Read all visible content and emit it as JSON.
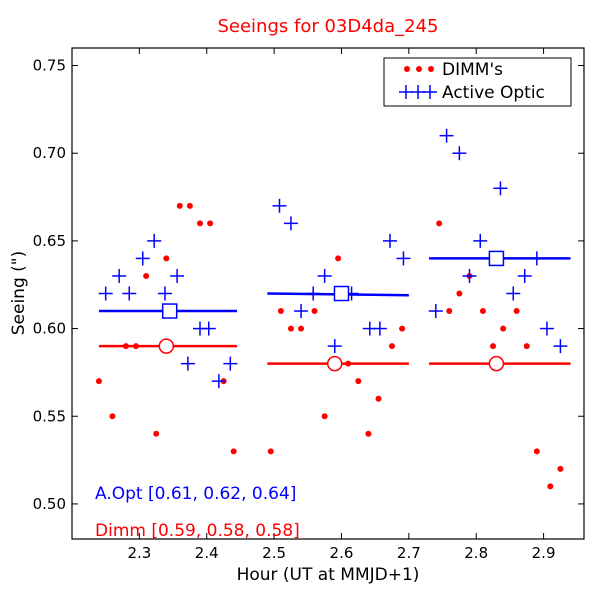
{
  "chart_data": {
    "type": "scatter",
    "title": "Seeings for 03D4da_245",
    "xlabel": "Hour (UT at MMJD+1)",
    "ylabel": "Seeing (\")",
    "xlim": [
      2.2,
      2.96
    ],
    "ylim": [
      0.48,
      0.76
    ],
    "xticks": [
      2.3,
      2.4,
      2.5,
      2.6,
      2.7,
      2.8,
      2.9
    ],
    "xtick_labels": [
      "2.3",
      "2.4",
      "2.5",
      "2.6",
      "2.7",
      "2.8",
      "2.9"
    ],
    "yticks": [
      0.5,
      0.55,
      0.6,
      0.65,
      0.7,
      0.75
    ],
    "ytick_labels": [
      "0.50",
      "0.55",
      "0.60",
      "0.65",
      "0.70",
      "0.75"
    ],
    "legend": {
      "position": "top-right",
      "entries": [
        {
          "label": "DIMM's",
          "color": "#ff0000",
          "marker": "dot"
        },
        {
          "label": "Active Optic",
          "color": "#0000ff",
          "marker": "plus"
        }
      ]
    },
    "annotations": [
      {
        "name": "aopt-summary",
        "text": "A.Opt [0.61, 0.62, 0.64]",
        "color": "#0000ff"
      },
      {
        "name": "dimm-summary",
        "text": "Dimm [0.59, 0.58, 0.58]",
        "color": "#ff0000"
      }
    ],
    "series": [
      {
        "name": "DIMM's",
        "color": "#ff0000",
        "marker": "dot",
        "points": [
          [
            2.24,
            0.57
          ],
          [
            2.26,
            0.55
          ],
          [
            2.28,
            0.59
          ],
          [
            2.295,
            0.59
          ],
          [
            2.31,
            0.63
          ],
          [
            2.325,
            0.54
          ],
          [
            2.34,
            0.64
          ],
          [
            2.36,
            0.67
          ],
          [
            2.375,
            0.67
          ],
          [
            2.39,
            0.66
          ],
          [
            2.405,
            0.66
          ],
          [
            2.425,
            0.57
          ],
          [
            2.44,
            0.53
          ],
          [
            2.495,
            0.53
          ],
          [
            2.51,
            0.61
          ],
          [
            2.525,
            0.6
          ],
          [
            2.54,
            0.6
          ],
          [
            2.56,
            0.61
          ],
          [
            2.575,
            0.55
          ],
          [
            2.595,
            0.64
          ],
          [
            2.61,
            0.58
          ],
          [
            2.625,
            0.57
          ],
          [
            2.64,
            0.54
          ],
          [
            2.655,
            0.56
          ],
          [
            2.675,
            0.59
          ],
          [
            2.69,
            0.6
          ],
          [
            2.745,
            0.66
          ],
          [
            2.76,
            0.61
          ],
          [
            2.775,
            0.62
          ],
          [
            2.79,
            0.63
          ],
          [
            2.81,
            0.61
          ],
          [
            2.825,
            0.59
          ],
          [
            2.84,
            0.6
          ],
          [
            2.86,
            0.61
          ],
          [
            2.875,
            0.59
          ],
          [
            2.89,
            0.53
          ],
          [
            2.91,
            0.51
          ],
          [
            2.925,
            0.52
          ]
        ]
      },
      {
        "name": "Active Optic",
        "color": "#0000ff",
        "marker": "plus",
        "points": [
          [
            2.25,
            0.62
          ],
          [
            2.27,
            0.63
          ],
          [
            2.285,
            0.62
          ],
          [
            2.305,
            0.64
          ],
          [
            2.322,
            0.65
          ],
          [
            2.338,
            0.62
          ],
          [
            2.356,
            0.63
          ],
          [
            2.372,
            0.58
          ],
          [
            2.39,
            0.6
          ],
          [
            2.403,
            0.6
          ],
          [
            2.418,
            0.57
          ],
          [
            2.435,
            0.58
          ],
          [
            2.508,
            0.67
          ],
          [
            2.525,
            0.66
          ],
          [
            2.54,
            0.61
          ],
          [
            2.558,
            0.62
          ],
          [
            2.575,
            0.63
          ],
          [
            2.59,
            0.59
          ],
          [
            2.615,
            0.62
          ],
          [
            2.642,
            0.6
          ],
          [
            2.657,
            0.6
          ],
          [
            2.672,
            0.65
          ],
          [
            2.692,
            0.64
          ],
          [
            2.74,
            0.61
          ],
          [
            2.756,
            0.71
          ],
          [
            2.775,
            0.7
          ],
          [
            2.79,
            0.63
          ],
          [
            2.806,
            0.65
          ],
          [
            2.836,
            0.68
          ],
          [
            2.855,
            0.62
          ],
          [
            2.872,
            0.63
          ],
          [
            2.89,
            0.64
          ],
          [
            2.905,
            0.6
          ],
          [
            2.925,
            0.59
          ]
        ]
      },
      {
        "name": "Active Optic median",
        "color": "#0000ff",
        "marker": "square",
        "segments": [
          {
            "x0": 2.24,
            "x1": 2.445,
            "y0": 0.61,
            "y1": 0.61,
            "marker_x": 2.345,
            "marker_y": 0.61
          },
          {
            "x0": 2.49,
            "x1": 2.7,
            "y0": 0.62,
            "y1": 0.619,
            "marker_x": 2.6,
            "marker_y": 0.62
          },
          {
            "x0": 2.73,
            "x1": 2.94,
            "y0": 0.64,
            "y1": 0.64,
            "marker_x": 2.83,
            "marker_y": 0.64
          }
        ]
      },
      {
        "name": "DIMM median",
        "color": "#ff0000",
        "marker": "circle",
        "segments": [
          {
            "x0": 2.24,
            "x1": 2.445,
            "y0": 0.59,
            "y1": 0.59,
            "marker_x": 2.34,
            "marker_y": 0.59
          },
          {
            "x0": 2.49,
            "x1": 2.7,
            "y0": 0.58,
            "y1": 0.58,
            "marker_x": 2.59,
            "marker_y": 0.58
          },
          {
            "x0": 2.73,
            "x1": 2.94,
            "y0": 0.58,
            "y1": 0.58,
            "marker_x": 2.83,
            "marker_y": 0.58
          }
        ]
      }
    ]
  }
}
